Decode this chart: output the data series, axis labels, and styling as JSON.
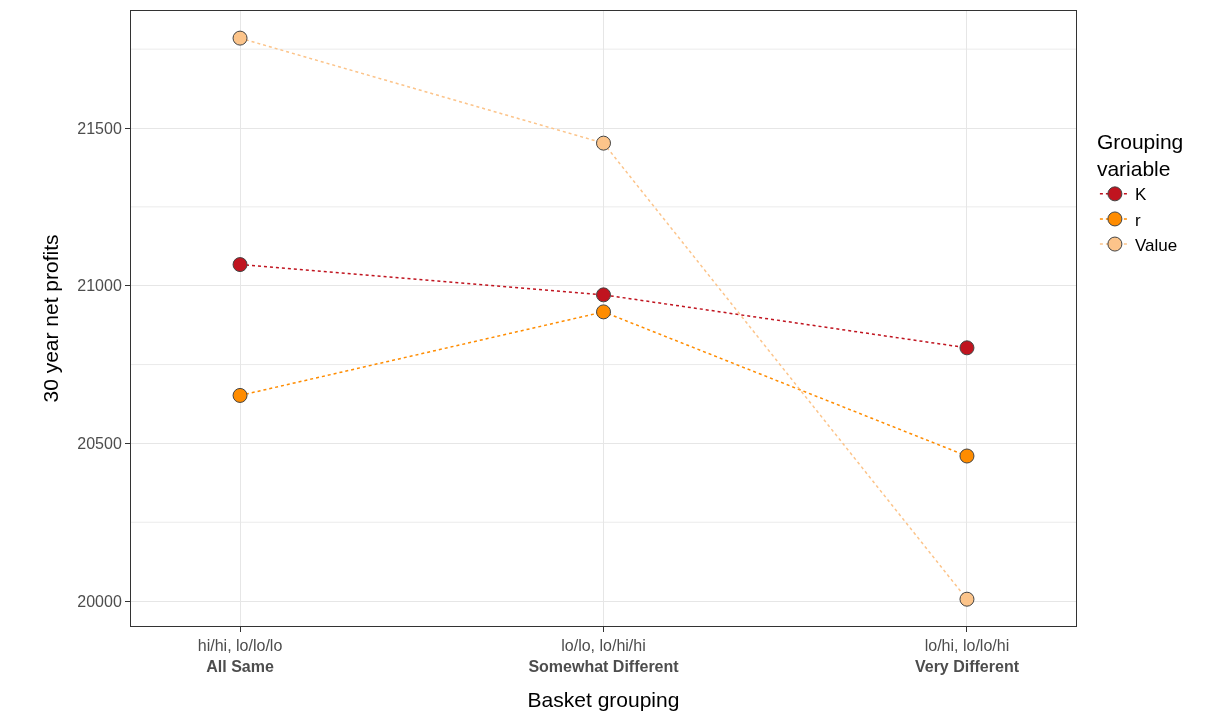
{
  "chart_data": {
    "type": "line",
    "xlabel": "Basket grouping",
    "ylabel": "30 year net profits",
    "legend_title": "Grouping\nvariable",
    "categories": [
      "hi/hi, lo/lo/lo\nAll Same",
      "lo/lo, lo/hi/hi\nSomewhat Different",
      "lo/hi, lo/lo/hi\nVery Different"
    ],
    "series": [
      {
        "name": "K",
        "color": "#c0141f",
        "values": [
          21067,
          20971,
          20803
        ]
      },
      {
        "name": "r",
        "color": "#ff8c00",
        "values": [
          20652,
          20917,
          20460
        ]
      },
      {
        "name": "Value",
        "color": "#fcc48a",
        "values": [
          21785,
          21452,
          20006
        ]
      }
    ],
    "ylim": [
      19921,
      21871
    ],
    "yticks": [
      20000,
      20500,
      21000,
      21500
    ],
    "grid": true,
    "legend": "right",
    "marker": "circle",
    "line_style": "dotted"
  }
}
